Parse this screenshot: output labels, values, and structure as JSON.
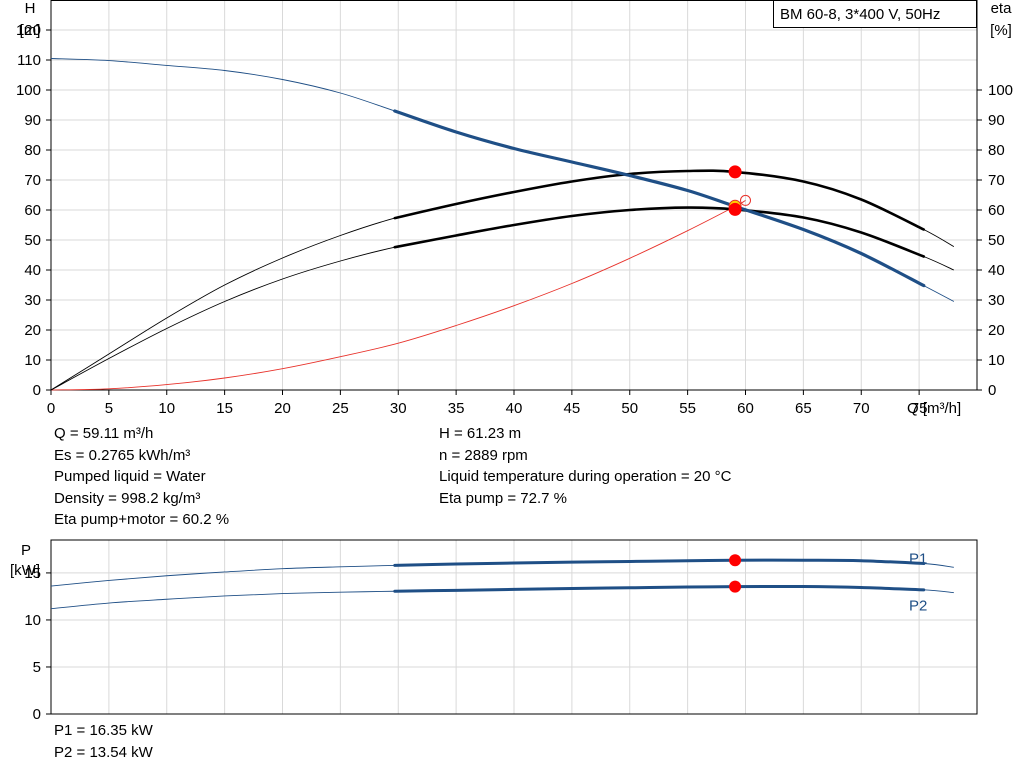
{
  "chart_data": [
    {
      "type": "line",
      "title": "BM 60-8, 3*400 V, 50Hz",
      "x_axis": {
        "label": "Q [m³/h]",
        "range": [
          0,
          80
        ],
        "ticks": [
          0,
          5,
          10,
          15,
          20,
          25,
          30,
          35,
          40,
          45,
          50,
          55,
          60,
          65,
          70,
          75
        ]
      },
      "y_axis_left": {
        "label_line1": "H",
        "label_line2": "[m]",
        "range": [
          0,
          130
        ],
        "ticks": [
          0,
          10,
          20,
          30,
          40,
          50,
          60,
          70,
          80,
          90,
          100,
          110,
          120
        ]
      },
      "y_axis_right": {
        "label_line1": "eta",
        "label_line2": "[%]",
        "range": [
          0,
          130
        ],
        "ticks": [
          0,
          10,
          20,
          30,
          40,
          50,
          60,
          70,
          80,
          90,
          100
        ]
      },
      "grid": true,
      "series": [
        {
          "key": "head",
          "axis": "left",
          "color": "#1f4f86",
          "x": [
            0,
            5,
            10,
            15,
            20,
            25,
            29.7,
            35,
            40,
            45,
            50,
            55,
            59.1,
            65,
            70,
            75.4,
            78
          ],
          "y": [
            110.5,
            109.8,
            108.2,
            106.5,
            103.5,
            99,
            93,
            86,
            80.5,
            76,
            71.5,
            66.5,
            61.2,
            53.5,
            45.5,
            34.8,
            29.5
          ],
          "bold_range": [
            29.7,
            75.4
          ]
        },
        {
          "key": "eta_pump",
          "axis": "right",
          "color": "#000000",
          "x": [
            0,
            5,
            10,
            15,
            20,
            25,
            29.7,
            35,
            40,
            45,
            50,
            55,
            59.1,
            65,
            70,
            75.4,
            78
          ],
          "y": [
            0,
            12,
            24,
            35,
            44,
            51.5,
            57.3,
            62,
            66,
            69.5,
            72,
            73,
            72.7,
            69.5,
            63.5,
            53.5,
            47.8
          ],
          "bold_range": [
            29.7,
            75.4
          ]
        },
        {
          "key": "eta_total",
          "axis": "right",
          "color": "#000000",
          "x": [
            0,
            5,
            10,
            15,
            20,
            25,
            29.7,
            35,
            40,
            45,
            50,
            55,
            59.1,
            65,
            70,
            75.4,
            78
          ],
          "y": [
            0,
            10.5,
            20.5,
            29.5,
            37,
            43,
            47.6,
            51.5,
            55,
            58,
            60,
            60.8,
            60.2,
            57.5,
            52.5,
            44.5,
            40
          ],
          "bold_range": [
            29.7,
            75.4
          ]
        },
        {
          "key": "system",
          "axis": "left",
          "color": "#e8322b",
          "x": [
            0,
            5,
            10,
            15,
            20,
            25,
            30,
            35,
            40,
            45,
            50,
            55,
            59.1,
            60
          ],
          "y": [
            0,
            0.4,
            1.8,
            4,
            7.1,
            11.1,
            15.6,
            21.5,
            28.1,
            35.5,
            43.9,
            53.1,
            61.2,
            63.2
          ],
          "bold_range": null
        }
      ],
      "markers": [
        {
          "x": 59.1,
          "y": 72.7,
          "color": "#ff0000"
        },
        {
          "x": 59.1,
          "y": 61.23,
          "color": "#ffd000"
        },
        {
          "x": 59.1,
          "y": 60.2,
          "color": "#ff0000"
        }
      ]
    },
    {
      "type": "line",
      "x_axis": {
        "range": [
          0,
          80
        ]
      },
      "y_axis_left": {
        "label_line1": "P",
        "label_line2": "[kW]",
        "range": [
          0,
          18.5
        ],
        "ticks": [
          0,
          5,
          10,
          15
        ]
      },
      "grid": true,
      "series": [
        {
          "key": "P1",
          "name": "P1",
          "color": "#1f4f86",
          "x": [
            0,
            5,
            10,
            15,
            20,
            25,
            29.7,
            35,
            40,
            45,
            50,
            55,
            59.1,
            65,
            70,
            75.4,
            78
          ],
          "y": [
            13.6,
            14.2,
            14.7,
            15.1,
            15.45,
            15.65,
            15.8,
            15.95,
            16.05,
            16.15,
            16.22,
            16.3,
            16.35,
            16.35,
            16.3,
            16.0,
            15.6
          ],
          "bold_range": [
            29.7,
            75.4
          ]
        },
        {
          "key": "P2",
          "name": "P2",
          "color": "#1f4f86",
          "x": [
            0,
            5,
            10,
            15,
            20,
            25,
            29.7,
            35,
            40,
            45,
            50,
            55,
            59.1,
            65,
            70,
            75.4,
            78
          ],
          "y": [
            11.2,
            11.8,
            12.2,
            12.55,
            12.8,
            12.95,
            13.05,
            13.15,
            13.25,
            13.35,
            13.42,
            13.5,
            13.54,
            13.55,
            13.45,
            13.2,
            12.9
          ],
          "bold_range": [
            29.7,
            75.4
          ]
        }
      ],
      "markers": [
        {
          "x": 59.1,
          "y": 16.35,
          "color": "#ff0000"
        },
        {
          "x": 59.1,
          "y": 13.54,
          "color": "#ff0000"
        }
      ]
    }
  ],
  "info_left": [
    "Q = 59.11 m³/h",
    "Es = 0.2765 kWh/m³",
    "Pumped liquid = Water",
    "Density = 998.2 kg/m³",
    "Eta pump+motor = 60.2 %"
  ],
  "info_right": [
    "H = 61.23 m",
    "n = 2889 rpm",
    "Liquid temperature during operation = 20 °C",
    "Eta pump = 72.7 %"
  ],
  "power_info": [
    "P1 = 16.35 kW",
    "P2 = 13.54 kW"
  ]
}
